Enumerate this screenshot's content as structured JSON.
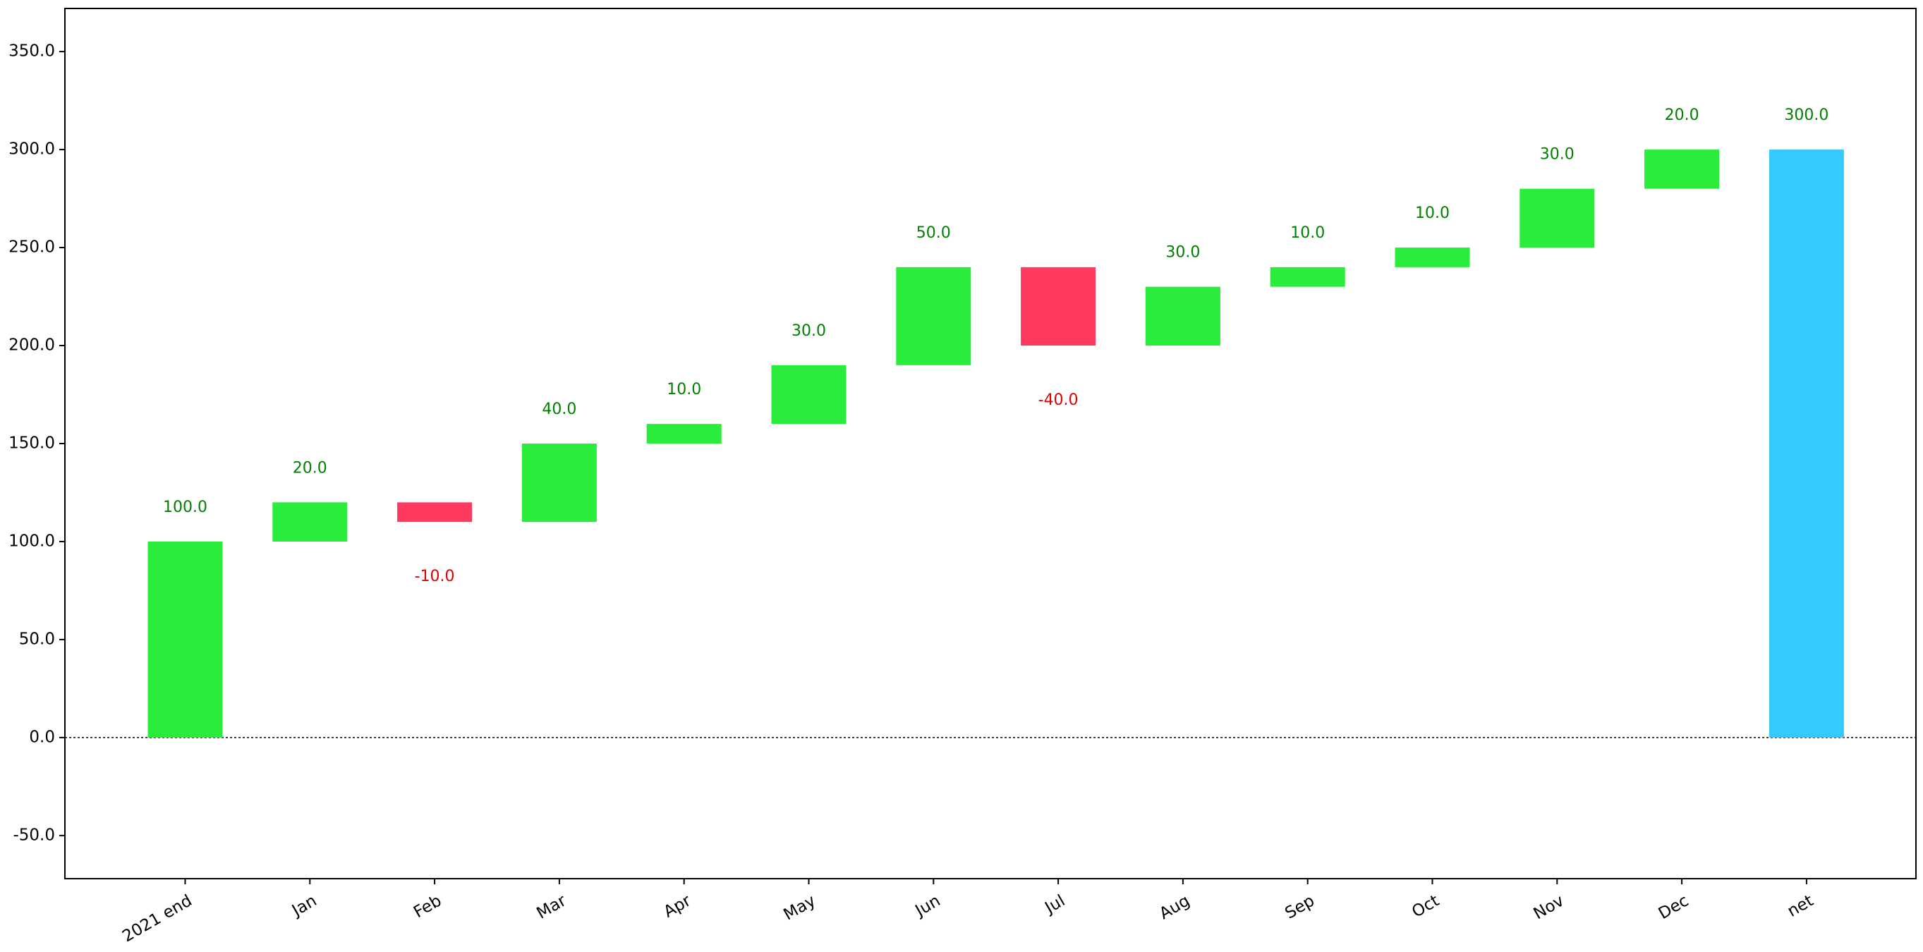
{
  "chart_data": {
    "type": "waterfall",
    "categories": [
      "2021 end",
      "Jan",
      "Feb",
      "Mar",
      "Apr",
      "May",
      "Jun",
      "Jul",
      "Aug",
      "Sep",
      "Oct",
      "Nov",
      "Dec",
      "net"
    ],
    "values": [
      100,
      20,
      -10,
      40,
      10,
      30,
      50,
      -40,
      30,
      10,
      10,
      30,
      20,
      300
    ],
    "value_labels": [
      "100.0",
      "20.0",
      "-10.0",
      "40.0",
      "10.0",
      "30.0",
      "50.0",
      "-40.0",
      "30.0",
      "10.0",
      "10.0",
      "30.0",
      "20.0",
      "300.0"
    ],
    "last_is_total": true,
    "increase_color": "#29ec3b",
    "decrease_color": "#fe3a60",
    "total_color": "#36c9ff",
    "increase_label_color": "#008000",
    "decrease_label_color": "#e00000",
    "ylim": [
      -72,
      372
    ],
    "yticks": [
      {
        "value": -50,
        "label": "-50.0"
      },
      {
        "value": 0,
        "label": "0.0"
      },
      {
        "value": 50,
        "label": "50.0"
      },
      {
        "value": 100,
        "label": "100.0"
      },
      {
        "value": 150,
        "label": "150.0"
      },
      {
        "value": 200,
        "label": "200.0"
      },
      {
        "value": 250,
        "label": "250.0"
      },
      {
        "value": 300,
        "label": "300.0"
      },
      {
        "value": 350,
        "label": "350.0"
      }
    ]
  }
}
